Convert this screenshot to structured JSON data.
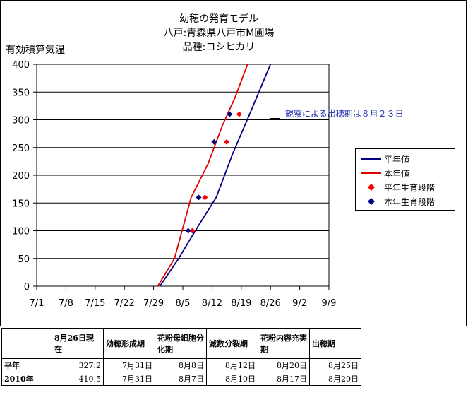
{
  "chart_data": {
    "type": "line",
    "title": [
      "幼穂の発育モデル",
      "八戸:青森県八戸市M圃場",
      "品種:コシヒカリ"
    ],
    "ylabel": "有効積算気温",
    "xlabel": "",
    "ylim": [
      0,
      400
    ],
    "yticks": [
      "0",
      "50",
      "100",
      "150",
      "200",
      "250",
      "300",
      "350",
      "400"
    ],
    "xticks": [
      "7/1",
      "7/8",
      "7/15",
      "7/22",
      "7/29",
      "8/5",
      "8/12",
      "8/19",
      "8/26",
      "9/2",
      "9/9"
    ],
    "xlim_day": [
      0,
      70
    ],
    "grid": "horizontal",
    "legend_position": "right",
    "series": [
      {
        "name": "平年値",
        "kind": "line",
        "color": "#000080",
        "x": [
          29.5,
          34,
          38,
          43,
          47,
          51,
          56
        ],
        "y": [
          0,
          50,
          100,
          160,
          240,
          310,
          400
        ]
      },
      {
        "name": "本年値",
        "kind": "line",
        "color": "#e00000",
        "x": [
          29,
          33,
          37,
          41,
          44.5,
          47.5,
          50.5
        ],
        "y": [
          0,
          50,
          160,
          220,
          290,
          340,
          400
        ]
      },
      {
        "name": "平年生育段階",
        "kind": "points",
        "color": "#ff0000",
        "x": [
          37.3,
          40.3,
          45.5,
          48.5
        ],
        "y": [
          100,
          160,
          260,
          310
        ]
      },
      {
        "name": "本年生育段階",
        "kind": "points",
        "color": "#000080",
        "x": [
          36.3,
          38.8,
          42.5,
          46.2
        ],
        "y": [
          100,
          160,
          260,
          310
        ]
      }
    ],
    "annotation": {
      "text": "観察による出穂期は８月２３日",
      "y": 300
    }
  },
  "table": {
    "headers": [
      "",
      "8月26日現在",
      "幼穂形成期",
      "花粉母細胞分化期",
      "減数分裂期",
      "花粉内容充実期",
      "出穂期"
    ],
    "rows": [
      [
        "平年",
        "327.2",
        "7月31日",
        "8月8日",
        "8月12日",
        "8月20日",
        "8月25日"
      ],
      [
        "2010年",
        "410.5",
        "7月31日",
        "8月7日",
        "8月10日",
        "8月17日",
        "8月20日"
      ]
    ]
  }
}
